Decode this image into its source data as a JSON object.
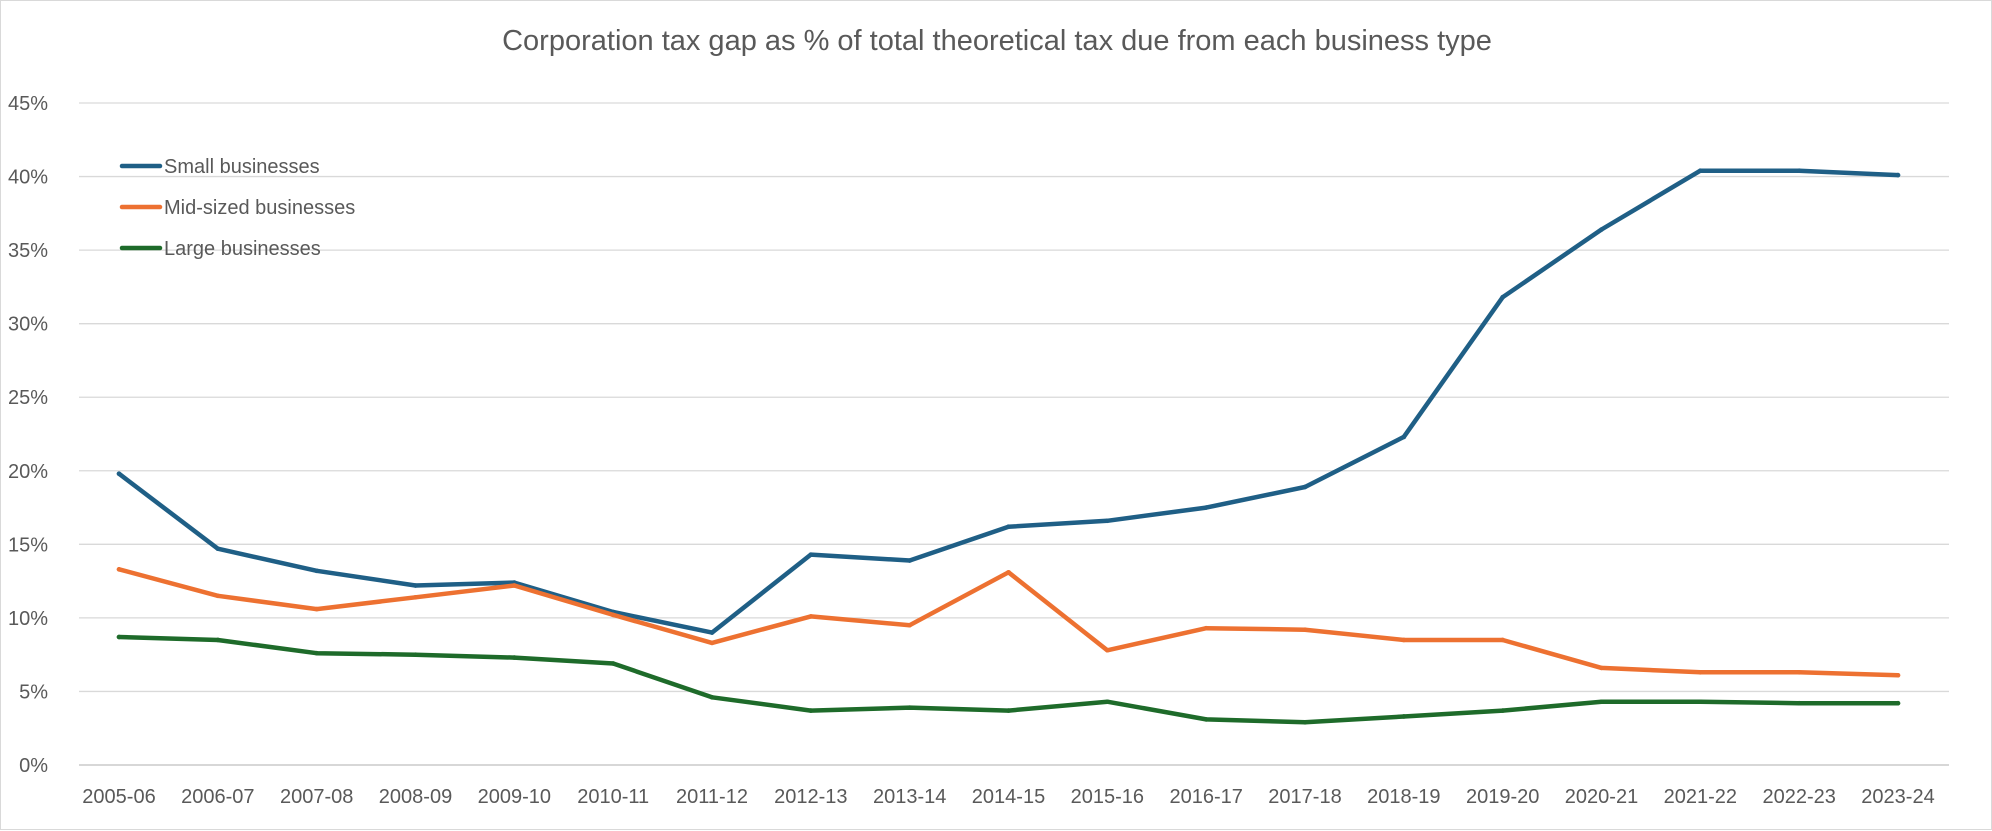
{
  "chart_data": {
    "type": "line",
    "title": "Corporation tax gap as % of total theoretical tax due from each business type",
    "xlabel": "",
    "ylabel": "",
    "ylim": [
      0,
      45
    ],
    "yticks": [
      "0%",
      "5%",
      "10%",
      "15%",
      "20%",
      "25%",
      "30%",
      "35%",
      "40%",
      "45%"
    ],
    "grid": true,
    "legend_position": "top-left",
    "categories": [
      "2005-06",
      "2006-07",
      "2007-08",
      "2008-09",
      "2009-10",
      "2010-11",
      "2011-12",
      "2012-13",
      "2013-14",
      "2014-15",
      "2015-16",
      "2016-17",
      "2017-18",
      "2018-19",
      "2019-20",
      "2020-21",
      "2021-22",
      "2022-23",
      "2023-24"
    ],
    "series": [
      {
        "name": "Small businesses",
        "color": "#1f5f86",
        "values": [
          19.8,
          14.7,
          13.2,
          12.2,
          12.4,
          10.4,
          9.0,
          14.3,
          13.9,
          16.2,
          16.6,
          17.5,
          18.9,
          22.3,
          31.8,
          36.4,
          40.4,
          40.4,
          40.1
        ]
      },
      {
        "name": "Mid-sized businesses",
        "color": "#ed7131",
        "values": [
          13.3,
          11.5,
          10.6,
          11.4,
          12.2,
          10.2,
          8.3,
          10.1,
          9.5,
          13.1,
          7.8,
          9.3,
          9.2,
          8.5,
          8.5,
          6.6,
          6.3,
          6.3,
          6.1
        ]
      },
      {
        "name": "Large businesses",
        "color": "#1e6b2a",
        "values": [
          8.7,
          8.5,
          7.6,
          7.5,
          7.3,
          6.9,
          4.6,
          3.7,
          3.9,
          3.7,
          4.3,
          3.1,
          2.9,
          3.3,
          3.7,
          4.3,
          4.3,
          4.2,
          4.2
        ]
      }
    ]
  }
}
